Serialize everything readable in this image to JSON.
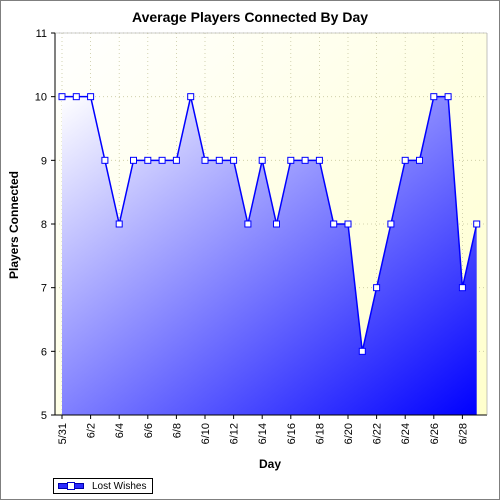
{
  "chart_data": {
    "type": "area",
    "title": "Average Players Connected By Day",
    "xlabel": "Day",
    "ylabel": "Players Connected",
    "ylim": [
      5,
      11
    ],
    "yticks": [
      5,
      6,
      7,
      8,
      9,
      10,
      11
    ],
    "grid": true,
    "legend_position": "bottom-left",
    "x": [
      "5/31",
      "6/1",
      "6/2",
      "6/3",
      "6/4",
      "6/5",
      "6/6",
      "6/7",
      "6/8",
      "6/9",
      "6/10",
      "6/11",
      "6/12",
      "6/13",
      "6/14",
      "6/15",
      "6/16",
      "6/17",
      "6/18",
      "6/19",
      "6/20",
      "6/21",
      "6/22",
      "6/23",
      "6/24",
      "6/25",
      "6/26",
      "6/27",
      "6/28",
      "6/29"
    ],
    "xtick_labels": [
      "5/31",
      "6/2",
      "6/4",
      "6/6",
      "6/8",
      "6/10",
      "6/12",
      "6/14",
      "6/16",
      "6/18",
      "6/20",
      "6/22",
      "6/24",
      "6/26",
      "6/28"
    ],
    "series": [
      {
        "name": "Lost Wishes",
        "color": "#0000ff",
        "values": [
          10,
          10,
          10,
          9,
          8,
          9,
          9,
          9,
          9,
          10,
          9,
          9,
          9,
          8,
          9,
          8,
          9,
          9,
          9,
          8,
          8,
          6,
          7,
          8,
          9,
          9,
          10,
          10,
          7,
          8
        ]
      }
    ]
  }
}
